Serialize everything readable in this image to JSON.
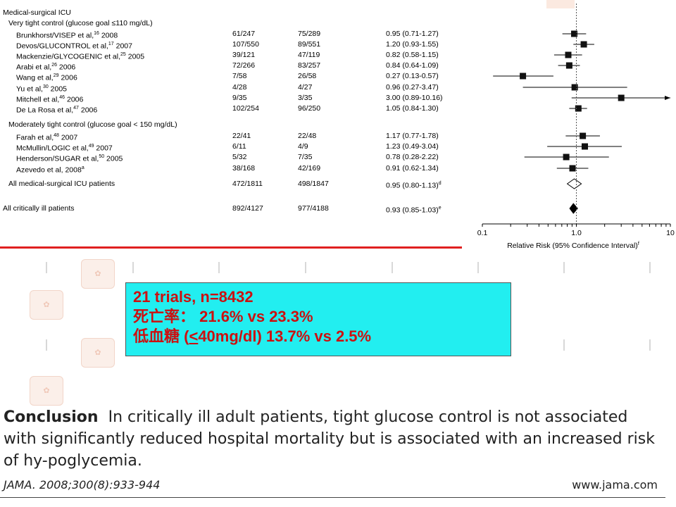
{
  "chart_data": {
    "type": "forest",
    "x_scale": "log",
    "xlim": [
      0.1,
      10
    ],
    "x_ticks": [
      "0.1",
      "1.0",
      "10"
    ],
    "xlabel": "Relative Risk (95% Confidence Interval)",
    "xlabel_sup": "f",
    "reference_line": 1.0,
    "groups": [
      {
        "label": "Medical-surgical ICU",
        "kind": "section"
      },
      {
        "label": "Very tight control (glucose goal ≤110 mg/dL)",
        "kind": "subsection"
      }
    ],
    "rows": [
      {
        "study": "Brunkhorst/VISEP et al,",
        "ref": "16",
        "year": "2008",
        "tx": "61/247",
        "ctl": "75/289",
        "rr_text": "0.95 (0.71-1.27)",
        "rr": 0.95,
        "lo": 0.71,
        "hi": 1.27,
        "kind": "study"
      },
      {
        "study": "Devos/GLUCONTROL et al,",
        "ref": "17",
        "year": "2007",
        "tx": "107/550",
        "ctl": "89/551",
        "rr_text": "1.20 (0.93-1.55)",
        "rr": 1.2,
        "lo": 0.93,
        "hi": 1.55,
        "kind": "study"
      },
      {
        "study": "Mackenzie/GLYCOGENIC et al,",
        "ref": "25",
        "year": "2005",
        "tx": "39/121",
        "ctl": "47/119",
        "rr_text": "0.82 (0.58-1.15)",
        "rr": 0.82,
        "lo": 0.58,
        "hi": 1.15,
        "kind": "study"
      },
      {
        "study": "Arabi et al,",
        "ref": "26",
        "year": "2006",
        "tx": "72/266",
        "ctl": "83/257",
        "rr_text": "0.84 (0.64-1.09)",
        "rr": 0.84,
        "lo": 0.64,
        "hi": 1.09,
        "kind": "study"
      },
      {
        "study": "Wang et al,",
        "ref": "29",
        "year": "2006",
        "tx": "7/58",
        "ctl": "26/58",
        "rr_text": "0.27 (0.13-0.57)",
        "rr": 0.27,
        "lo": 0.13,
        "hi": 0.57,
        "kind": "study"
      },
      {
        "study": "Yu et al,",
        "ref": "30",
        "year": "2005",
        "tx": "4/28",
        "ctl": "4/27",
        "rr_text": "0.96 (0.27-3.47)",
        "rr": 0.96,
        "lo": 0.27,
        "hi": 3.47,
        "kind": "study"
      },
      {
        "study": "Mitchell et al,",
        "ref": "46",
        "year": "2006",
        "tx": "9/35",
        "ctl": "3/35",
        "rr_text": "3.00 (0.89-10.16)",
        "rr": 3.0,
        "lo": 0.89,
        "hi": 10.16,
        "kind": "study"
      },
      {
        "study": "De La Rosa et al,",
        "ref": "47",
        "year": "2006",
        "tx": "102/254",
        "ctl": "96/250",
        "rr_text": "1.05 (0.84-1.30)",
        "rr": 1.05,
        "lo": 0.84,
        "hi": 1.3,
        "kind": "study"
      },
      {
        "study": "Moderately tight control (glucose goal < 150 mg/dL)",
        "kind": "subsection"
      },
      {
        "study": "Farah et al,",
        "ref": "48",
        "year": "2007",
        "tx": "22/41",
        "ctl": "22/48",
        "rr_text": "1.17 (0.77-1.78)",
        "rr": 1.17,
        "lo": 0.77,
        "hi": 1.78,
        "kind": "study"
      },
      {
        "study": "McMullin/LOGIC et al,",
        "ref": "49",
        "year": "2007",
        "tx": "6/11",
        "ctl": "4/9",
        "rr_text": "1.23 (0.49-3.04)",
        "rr": 1.23,
        "lo": 0.49,
        "hi": 3.04,
        "kind": "study"
      },
      {
        "study": "Henderson/SUGAR et al,",
        "ref": "50",
        "year": "2005",
        "tx": "5/32",
        "ctl": "7/35",
        "rr_text": "0.78 (0.28-2.22)",
        "rr": 0.78,
        "lo": 0.28,
        "hi": 2.22,
        "kind": "study"
      },
      {
        "study": "Azevedo et al,",
        "ref": "",
        "year": "2008",
        "year_sup": "a",
        "tx": "38/168",
        "ctl": "42/169",
        "rr_text": "0.91 (0.62-1.34)",
        "rr": 0.91,
        "lo": 0.62,
        "hi": 1.34,
        "kind": "study"
      },
      {
        "study": "All medical-surgical ICU patients",
        "tx": "472/1811",
        "ctl": "498/1847",
        "rr_text": "0.95 (0.80-1.13)",
        "rr_sup": "d",
        "rr": 0.95,
        "lo": 0.8,
        "hi": 1.13,
        "kind": "pooled_open"
      },
      {
        "study": "All critically ill patients",
        "tx": "892/4127",
        "ctl": "977/4188",
        "rr_text": "0.93 (0.85-1.03)",
        "rr_sup": "e",
        "rr": 0.93,
        "lo": 0.85,
        "hi": 1.03,
        "kind": "pooled_filled"
      }
    ]
  },
  "callout": {
    "line1": "21 trials,   n=8432",
    "line2": "死亡率：   21.6% vs 23.3%",
    "line3_prefix": "低血糖 (",
    "line3_le": "<",
    "line3_rest": "40mg/dl)    13.7% vs 2.5%"
  },
  "conclusion": {
    "label": "Conclusion",
    "text": "In critically ill adult patients, tight glucose control is not associated with significantly reduced hospital mortality but is associated with an increased risk of hy-poglycemia."
  },
  "citation": "JAMA. 2008;300(8):933-944",
  "website": "www.jama.com",
  "colors": {
    "accent_red": "#e02020",
    "callout_bg": "#22eef0",
    "callout_text": "#cc1010"
  }
}
